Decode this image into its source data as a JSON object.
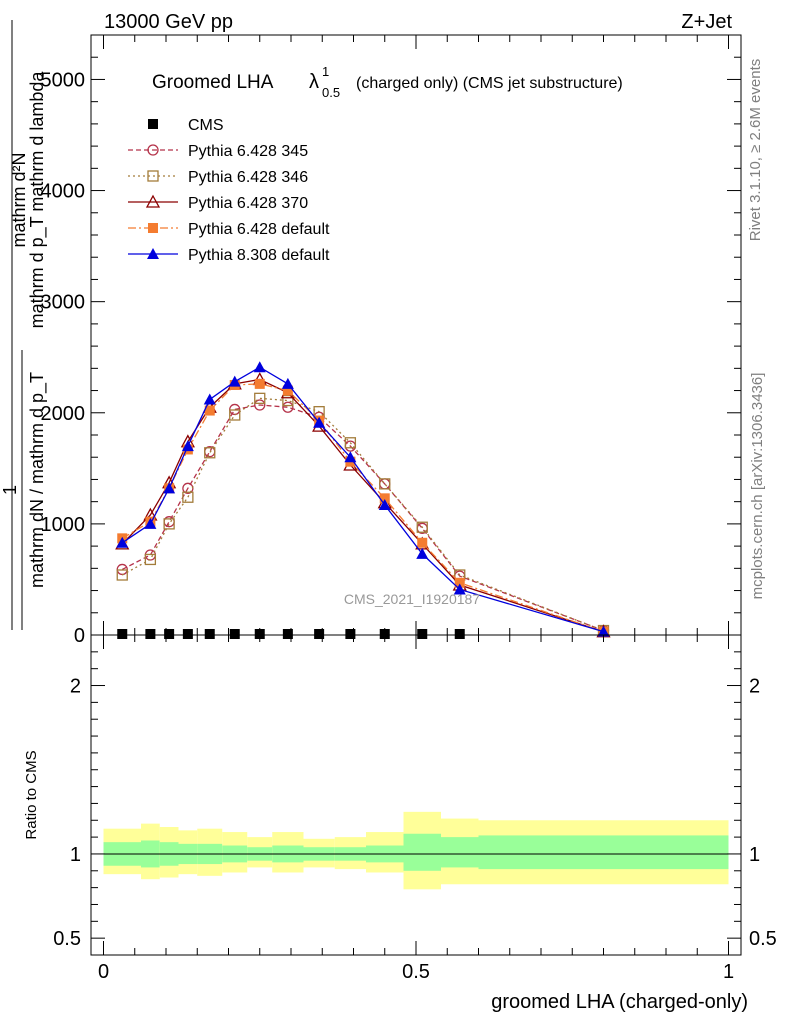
{
  "header": {
    "energy": "13000 GeV pp",
    "process": "Z+Jet"
  },
  "side_text": {
    "rivet": "Rivet 3.1.10, ≥ 2.6M events",
    "mcplots": "mcplots.cern.ch [arXiv:1306.3436]"
  },
  "watermark": "CMS_2021_I1920187",
  "chart_data": [
    {
      "type": "line",
      "title_main": "Groomed LHA",
      "title_lambda": "λ",
      "title_sup": "1",
      "title_sub": "0.5",
      "title_rest": "(charged only) (CMS jet substructure)",
      "ylabel_top": "mathrm d²N",
      "ylabel_top2": "mathrm d p_T mathrm d lambda",
      "ylabel_bottom_num": "1",
      "ylabel_bottom": "mathrm dN / mathrm d p_T",
      "ylim": [
        0,
        5400
      ],
      "xlim": [
        -0.02,
        1.02
      ],
      "yticks": [
        0,
        1000,
        2000,
        3000,
        4000,
        5000
      ],
      "ytick_labels": [
        "0",
        "1000",
        "2000",
        "3000",
        "4000",
        "5000"
      ],
      "legend_position": "top-left",
      "x": [
        0.03,
        0.075,
        0.105,
        0.135,
        0.17,
        0.21,
        0.25,
        0.295,
        0.345,
        0.395,
        0.45,
        0.51,
        0.57,
        0.8
      ],
      "series": [
        {
          "name": "CMS",
          "color": "#000000",
          "marker": "square-filled",
          "dash": "none",
          "values": [
            0,
            0,
            0,
            0,
            0,
            0,
            0,
            0,
            0,
            0,
            0,
            0,
            0,
            null
          ]
        },
        {
          "name": "Pythia 6.428 345",
          "color": "#b5334a",
          "marker": "circle-open",
          "dash": "5,3",
          "values": [
            590,
            720,
            1020,
            1320,
            1650,
            2030,
            2070,
            2050,
            1960,
            1700,
            1360,
            960,
            530,
            40
          ]
        },
        {
          "name": "Pythia 6.428 346",
          "color": "#a37c3a",
          "marker": "square-open",
          "dash": "2,3",
          "values": [
            540,
            680,
            1000,
            1240,
            1640,
            1980,
            2130,
            2110,
            2010,
            1730,
            1360,
            970,
            540,
            40
          ]
        },
        {
          "name": "Pythia 6.428 370",
          "color": "#8b0000",
          "marker": "triangle-open",
          "dash": "none",
          "values": [
            820,
            1080,
            1370,
            1740,
            2050,
            2260,
            2300,
            2180,
            1880,
            1530,
            1190,
            820,
            450,
            30
          ]
        },
        {
          "name": "Pythia 6.428 default",
          "color": "#f47c30",
          "marker": "square-filled",
          "dash": "8,3,2,3",
          "values": [
            870,
            1020,
            1320,
            1670,
            2020,
            2250,
            2260,
            2200,
            1930,
            1560,
            1230,
            830,
            470,
            30
          ]
        },
        {
          "name": "Pythia 8.308 default",
          "color": "#0000dd",
          "marker": "triangle-filled",
          "dash": "none",
          "values": [
            830,
            1000,
            1320,
            1700,
            2120,
            2280,
            2410,
            2260,
            1910,
            1600,
            1170,
            730,
            410,
            30
          ]
        }
      ]
    },
    {
      "type": "area",
      "ylabel": "Ratio to CMS",
      "xlabel": "groomed LHA (charged-only)",
      "xlim": [
        -0.02,
        1.02
      ],
      "ylim": [
        0.4,
        2.3
      ],
      "yticks": [
        0.5,
        1,
        2
      ],
      "ytick_labels": [
        "0.5",
        "1",
        "2"
      ],
      "xticks": [
        0,
        0.5,
        1
      ],
      "xtick_labels": [
        "0",
        "0.5",
        "1"
      ],
      "reference_line": 1,
      "bins": [
        {
          "x0": 0.0,
          "x1": 0.06,
          "inner": [
            0.93,
            1.07
          ],
          "outer": [
            0.88,
            1.15
          ]
        },
        {
          "x0": 0.06,
          "x1": 0.09,
          "inner": [
            0.92,
            1.08
          ],
          "outer": [
            0.85,
            1.18
          ]
        },
        {
          "x0": 0.09,
          "x1": 0.12,
          "inner": [
            0.93,
            1.07
          ],
          "outer": [
            0.86,
            1.16
          ]
        },
        {
          "x0": 0.12,
          "x1": 0.15,
          "inner": [
            0.94,
            1.06
          ],
          "outer": [
            0.88,
            1.14
          ]
        },
        {
          "x0": 0.15,
          "x1": 0.19,
          "inner": [
            0.94,
            1.06
          ],
          "outer": [
            0.87,
            1.15
          ]
        },
        {
          "x0": 0.19,
          "x1": 0.23,
          "inner": [
            0.95,
            1.05
          ],
          "outer": [
            0.89,
            1.13
          ]
        },
        {
          "x0": 0.23,
          "x1": 0.27,
          "inner": [
            0.96,
            1.04
          ],
          "outer": [
            0.92,
            1.1
          ]
        },
        {
          "x0": 0.27,
          "x1": 0.32,
          "inner": [
            0.95,
            1.05
          ],
          "outer": [
            0.89,
            1.13
          ]
        },
        {
          "x0": 0.32,
          "x1": 0.37,
          "inner": [
            0.96,
            1.04
          ],
          "outer": [
            0.92,
            1.09
          ]
        },
        {
          "x0": 0.37,
          "x1": 0.42,
          "inner": [
            0.96,
            1.04
          ],
          "outer": [
            0.91,
            1.1
          ]
        },
        {
          "x0": 0.42,
          "x1": 0.48,
          "inner": [
            0.95,
            1.05
          ],
          "outer": [
            0.89,
            1.13
          ]
        },
        {
          "x0": 0.48,
          "x1": 0.54,
          "inner": [
            0.9,
            1.12
          ],
          "outer": [
            0.79,
            1.25
          ]
        },
        {
          "x0": 0.54,
          "x1": 0.6,
          "inner": [
            0.92,
            1.1
          ],
          "outer": [
            0.82,
            1.21
          ]
        },
        {
          "x0": 0.6,
          "x1": 1.0,
          "inner": [
            0.91,
            1.11
          ],
          "outer": [
            0.82,
            1.2
          ]
        }
      ]
    }
  ]
}
